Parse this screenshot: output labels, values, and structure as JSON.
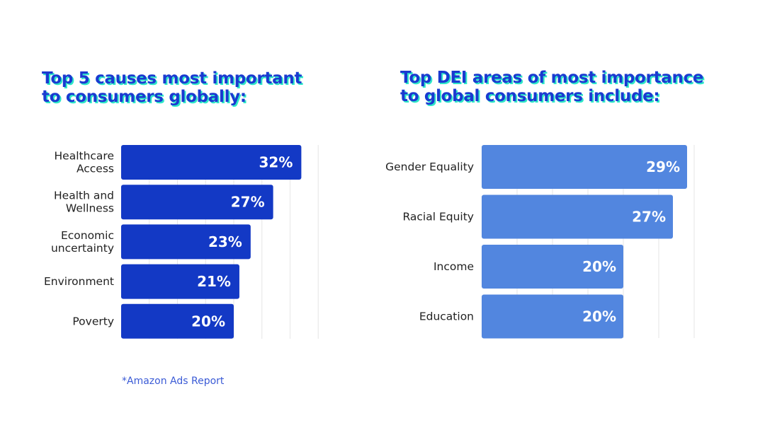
{
  "titles": {
    "left": [
      "Top 5 causes most important",
      "to consumers globally:"
    ],
    "right": [
      "Top DEI areas of most importance",
      "to global consumers include:"
    ]
  },
  "colors": {
    "title": "#1a3ad0",
    "title_shadow": "#2ee8c8",
    "left_bars": "#1339c5",
    "right_bars": "#5286df",
    "gridline": "#e6e6e6",
    "footnote": "#3b5bd6"
  },
  "footnote": "*Amazon Ads Report",
  "chart_data": [
    {
      "type": "bar",
      "orientation": "horizontal",
      "title": "Top 5 causes most important to consumers globally:",
      "categories": [
        [
          "Healthcare",
          "Access"
        ],
        [
          "Health and",
          "Wellness"
        ],
        [
          "Economic",
          "uncertainty"
        ],
        [
          "Environment"
        ],
        [
          "Poverty"
        ]
      ],
      "values": [
        32,
        27,
        23,
        21,
        20
      ],
      "value_labels": [
        "32%",
        "27%",
        "23%",
        "21%",
        "20%"
      ],
      "unit": "%",
      "xlim": [
        0,
        35
      ],
      "grid_step": 5,
      "grid": true,
      "xlabel": "",
      "ylabel": ""
    },
    {
      "type": "bar",
      "orientation": "horizontal",
      "title": "Top DEI areas of most importance to global consumers include:",
      "categories": [
        [
          "Gender Equality"
        ],
        [
          "Racial Equity"
        ],
        [
          "Income"
        ],
        [
          "Education"
        ]
      ],
      "values": [
        29,
        27,
        20,
        20
      ],
      "value_labels": [
        "29%",
        "27%",
        "20%",
        "20%"
      ],
      "unit": "%",
      "xlim": [
        0,
        30
      ],
      "grid_step": 5,
      "grid": true,
      "xlabel": "",
      "ylabel": ""
    }
  ]
}
